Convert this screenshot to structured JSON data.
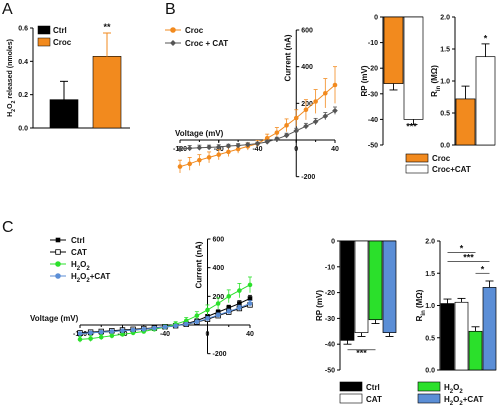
{
  "panels": {
    "a": "A",
    "b": "B",
    "c": "C"
  },
  "colors": {
    "orange": "#F28A1E",
    "black": "#000000",
    "white": "#ffffff",
    "gray": "#555555",
    "green": "#2BE02B",
    "blue": "#5B8ED6"
  },
  "chart_data": [
    {
      "id": "A",
      "type": "bar",
      "ylabel": "H2O2 released (nmoles)",
      "ylim": [
        0,
        0.6
      ],
      "yticks": [
        "0.0",
        "0.2",
        "0.4",
        "0.6"
      ],
      "legend": [
        {
          "name": "Ctrl",
          "color": "#000000"
        },
        {
          "name": "Croc",
          "color": "#F28A1E"
        }
      ],
      "categories": [
        "Ctrl",
        "Croc"
      ],
      "values": [
        0.17,
        0.43
      ],
      "errors": [
        0.11,
        0.14
      ],
      "significance": [
        "",
        "**"
      ]
    },
    {
      "id": "B-IV",
      "type": "line",
      "xlabel": "Voltage (mV)",
      "ylabel": "Current (nA)",
      "xlim": [
        -120,
        40
      ],
      "ylim": [
        -200,
        600
      ],
      "xticks": [
        "-120",
        "-80",
        "-40",
        "0",
        "40"
      ],
      "yticks": [
        "-200",
        "200",
        "400",
        "600"
      ],
      "series": [
        {
          "name": "Croc",
          "color": "#F28A1E",
          "marker": "circle",
          "x": [
            -120,
            -110,
            -100,
            -90,
            -80,
            -70,
            -60,
            -50,
            -40,
            -30,
            -20,
            -10,
            0,
            10,
            20,
            30,
            40
          ],
          "y": [
            -145,
            -130,
            -110,
            -95,
            -80,
            -65,
            -50,
            -35,
            -20,
            10,
            40,
            80,
            120,
            165,
            210,
            255,
            300
          ],
          "err": [
            35,
            35,
            30,
            30,
            28,
            25,
            22,
            20,
            18,
            22,
            28,
            35,
            45,
            55,
            65,
            80,
            100
          ]
        },
        {
          "name": "Croc + CAT",
          "color": "#555555",
          "marker": "diamond",
          "x": [
            -120,
            -110,
            -100,
            -90,
            -80,
            -70,
            -60,
            -50,
            -40,
            -30,
            -20,
            -10,
            0,
            10,
            20,
            30,
            40
          ],
          "y": [
            -50,
            -45,
            -42,
            -40,
            -38,
            -33,
            -30,
            -25,
            -20,
            -10,
            5,
            25,
            50,
            75,
            100,
            130,
            160
          ],
          "err": [
            15,
            15,
            14,
            12,
            12,
            10,
            10,
            9,
            8,
            9,
            10,
            12,
            14,
            16,
            18,
            20,
            20
          ]
        }
      ]
    },
    {
      "id": "B-RP",
      "type": "bar",
      "ylabel": "RP (mV)",
      "ylim": [
        -50,
        0
      ],
      "yticks": [
        "0",
        "-10",
        "-20",
        "-30",
        "-40",
        "-50"
      ],
      "categories": [
        "Croc",
        "Croc+CAT"
      ],
      "colors": [
        "#F28A1E",
        "#ffffff"
      ],
      "values": [
        -26,
        -40
      ],
      "errors": [
        2.5,
        2
      ],
      "significance": "***"
    },
    {
      "id": "B-Rin",
      "type": "bar",
      "ylabel": "Rin (MΩ)",
      "ylim": [
        0,
        2
      ],
      "yticks": [
        "0.0",
        "0.5",
        "1.0",
        "1.5",
        "2.0"
      ],
      "categories": [
        "Croc",
        "Croc+CAT"
      ],
      "colors": [
        "#F28A1E",
        "#ffffff"
      ],
      "values": [
        0.72,
        1.38
      ],
      "errors": [
        0.2,
        0.2
      ],
      "significance": "*",
      "legend": [
        {
          "name": "Croc",
          "color": "#F28A1E"
        },
        {
          "name": "Croc+CAT",
          "color": "#ffffff"
        }
      ]
    },
    {
      "id": "C-IV",
      "type": "line",
      "xlabel": "Voltage (mV)",
      "ylabel": "Current (nA)",
      "xlim": [
        -120,
        40
      ],
      "ylim": [
        -200,
        600
      ],
      "xticks": [
        "-120",
        "-80",
        "-40",
        "0",
        "40"
      ],
      "yticks": [
        "-200",
        "200",
        "400",
        "600"
      ],
      "series": [
        {
          "name": "Ctrl",
          "color": "#000000",
          "marker": "square-filled",
          "x": [
            -120,
            -110,
            -100,
            -90,
            -80,
            -70,
            -60,
            -50,
            -40,
            -30,
            -20,
            -10,
            0,
            10,
            20,
            30,
            40
          ],
          "y": [
            -60,
            -55,
            -50,
            -45,
            -40,
            -35,
            -30,
            -25,
            -15,
            -5,
            10,
            30,
            60,
            90,
            120,
            150,
            185
          ],
          "err": [
            10,
            10,
            10,
            10,
            10,
            10,
            10,
            10,
            10,
            10,
            12,
            12,
            14,
            16,
            18,
            20,
            22
          ]
        },
        {
          "name": "CAT",
          "color": "#000000",
          "marker": "square-open",
          "x": [
            -120,
            -110,
            -100,
            -90,
            -80,
            -70,
            -60,
            -50,
            -40,
            -30,
            -20,
            -10,
            0,
            10,
            20,
            30,
            40
          ],
          "y": [
            -55,
            -50,
            -45,
            -40,
            -35,
            -30,
            -25,
            -20,
            -12,
            -5,
            5,
            20,
            40,
            65,
            90,
            115,
            140
          ],
          "err": [
            8,
            8,
            8,
            8,
            8,
            8,
            8,
            8,
            8,
            8,
            10,
            10,
            10,
            12,
            12,
            14,
            16
          ]
        },
        {
          "name": "H2O2",
          "color": "#2BE02B",
          "marker": "circle",
          "x": [
            -120,
            -110,
            -100,
            -90,
            -80,
            -70,
            -60,
            -50,
            -40,
            -30,
            -20,
            -10,
            0,
            10,
            20,
            30,
            40
          ],
          "y": [
            -100,
            -95,
            -85,
            -75,
            -65,
            -55,
            -45,
            -30,
            -15,
            5,
            30,
            65,
            105,
            150,
            200,
            240,
            280
          ],
          "err": [
            20,
            20,
            18,
            18,
            16,
            16,
            15,
            15,
            15,
            18,
            22,
            28,
            35,
            40,
            45,
            50,
            55
          ]
        },
        {
          "name": "H2O2+CAT",
          "color": "#5B8ED6",
          "marker": "circle",
          "x": [
            -120,
            -110,
            -100,
            -90,
            -80,
            -70,
            -60,
            -50,
            -40,
            -30,
            -20,
            -10,
            0,
            10,
            20,
            30,
            40
          ],
          "y": [
            -60,
            -55,
            -50,
            -45,
            -40,
            -35,
            -30,
            -22,
            -14,
            -6,
            6,
            22,
            45,
            70,
            95,
            120,
            150
          ],
          "err": [
            10,
            10,
            10,
            10,
            10,
            10,
            10,
            10,
            10,
            10,
            12,
            12,
            14,
            14,
            16,
            18,
            20
          ]
        }
      ],
      "legend_labels": {
        "ctrl": "Ctrl",
        "cat": "CAT",
        "h2o2_main": "H",
        "h2o2_sub": "2",
        "h2o2_o": "O",
        "h2o2cat_suffix": "+CAT"
      }
    },
    {
      "id": "C-RP",
      "type": "bar",
      "ylabel": "RP (mV)",
      "ylim": [
        -50,
        0
      ],
      "yticks": [
        "0",
        "-10",
        "-20",
        "-30",
        "-40",
        "-50"
      ],
      "categories": [
        "Ctrl",
        "CAT",
        "H2O2",
        "H2O2+CAT"
      ],
      "colors": [
        "#000000",
        "#ffffff",
        "#2BE02B",
        "#5B8ED6"
      ],
      "values": [
        -38.5,
        -35.5,
        -30.5,
        -35.5
      ],
      "errors": [
        1.5,
        1.5,
        1.5,
        1.5
      ],
      "significance": "***"
    },
    {
      "id": "C-Rin",
      "type": "bar",
      "ylabel": "Rin (MΩ)",
      "ylim": [
        0,
        2
      ],
      "yticks": [
        "0.0",
        "0.5",
        "1.0",
        "1.5",
        "2.0"
      ],
      "categories": [
        "Ctrl",
        "CAT",
        "H2O2",
        "H2O2+CAT"
      ],
      "colors": [
        "#000000",
        "#ffffff",
        "#2BE02B",
        "#5B8ED6"
      ],
      "values": [
        1.03,
        1.05,
        0.6,
        1.28
      ],
      "errors": [
        0.07,
        0.06,
        0.07,
        0.1
      ],
      "significance": [
        "*",
        "***",
        "*"
      ],
      "legend": [
        {
          "name": "Ctrl",
          "color": "#000000"
        },
        {
          "name": "H2O2",
          "color": "#2BE02B"
        },
        {
          "name": "CAT",
          "color": "#ffffff"
        },
        {
          "name": "H2O2+CAT",
          "color": "#5B8ED6"
        }
      ]
    }
  ]
}
